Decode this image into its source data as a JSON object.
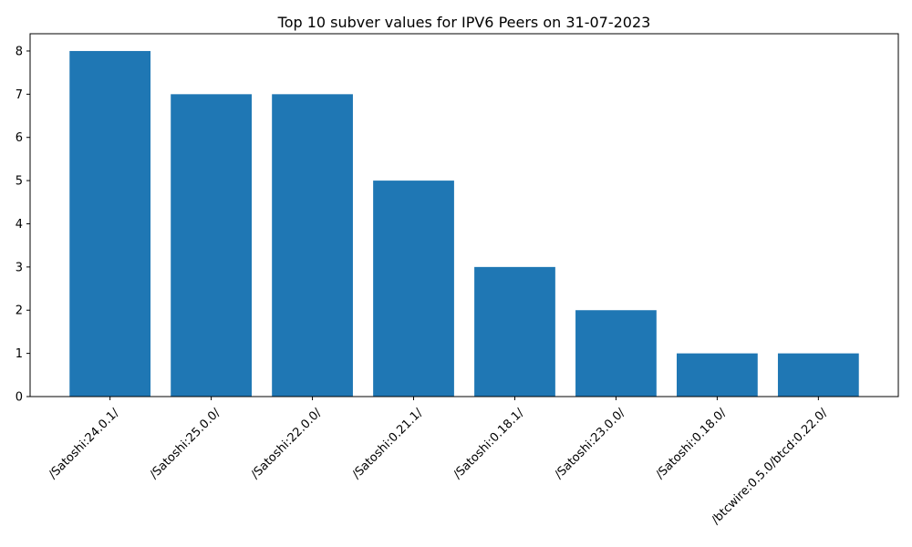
{
  "chart_data": {
    "type": "bar",
    "title": "Top 10 subver values for IPV6 Peers on 31-07-2023",
    "xlabel": "",
    "ylabel": "",
    "categories": [
      "/Satoshi:24.0.1/",
      "/Satoshi:25.0.0/",
      "/Satoshi:22.0.0/",
      "/Satoshi:0.21.1/",
      "/Satoshi:0.18.1/",
      "/Satoshi:23.0.0/",
      "/Satoshi:0.18.0/",
      "/btcwire:0.5.0/btcd:0.22.0/"
    ],
    "values": [
      8,
      7,
      7,
      5,
      3,
      2,
      1,
      1
    ],
    "ylim": [
      0,
      8.4
    ],
    "yticks": [
      0,
      1,
      2,
      3,
      4,
      5,
      6,
      7,
      8
    ],
    "bar_color": "#1f77b4",
    "grid": false,
    "legend": "none"
  }
}
